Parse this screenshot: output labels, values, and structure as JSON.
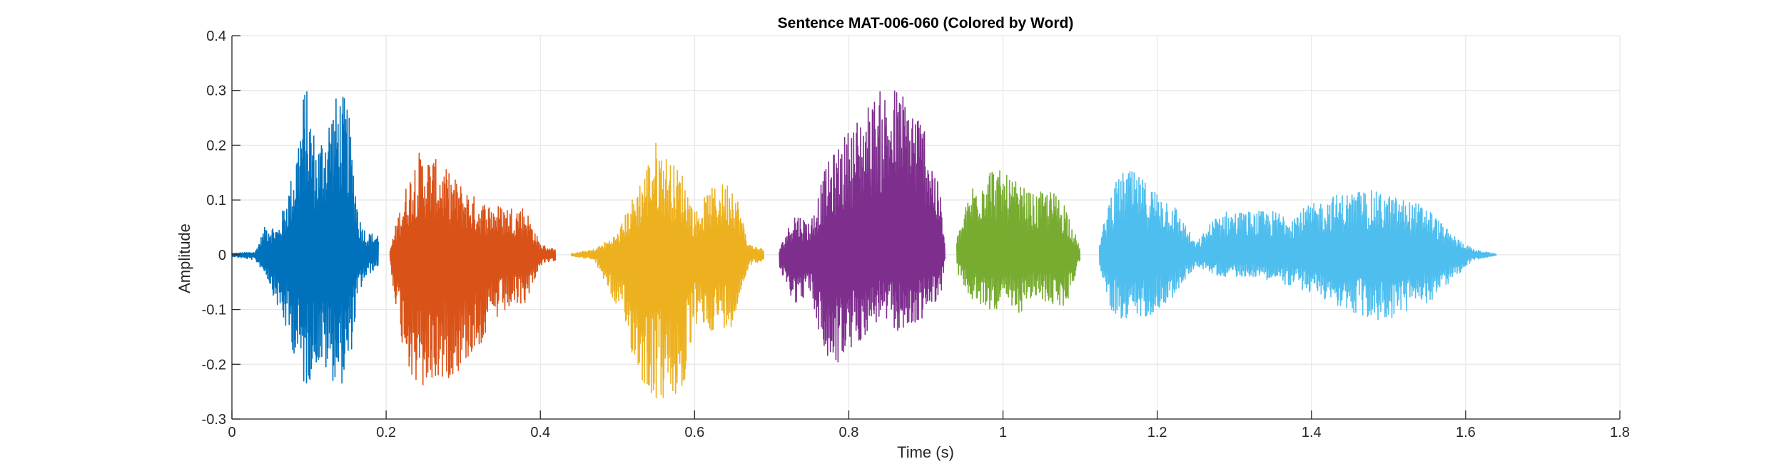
{
  "chart_data": {
    "type": "line",
    "title": "Sentence MAT-006-060 (Colored by Word)",
    "xlabel": "Time (s)",
    "ylabel": "Amplitude",
    "xlim": [
      0,
      1.8
    ],
    "ylim": [
      -0.3,
      0.4
    ],
    "x_ticks": [
      0,
      0.2,
      0.4,
      0.6,
      0.8,
      1,
      1.2,
      1.4,
      1.6,
      1.8
    ],
    "x_tick_labels": [
      "0",
      "0.2",
      "0.4",
      "0.6",
      "0.8",
      "1",
      "1.2",
      "1.4",
      "1.6",
      "1.8"
    ],
    "y_ticks": [
      -0.3,
      -0.2,
      -0.1,
      0,
      0.1,
      0.2,
      0.3,
      0.4
    ],
    "y_tick_labels": [
      "-0.3",
      "-0.2",
      "-0.1",
      "0",
      "0.1",
      "0.2",
      "0.3",
      "0.4"
    ],
    "grid": true,
    "series": [
      {
        "color": "#0072BD",
        "x_range": [
          0.0,
          0.19
        ],
        "envelope": [
          [
            0.0,
            0.003,
            -0.003
          ],
          [
            0.03,
            0.005,
            -0.01
          ],
          [
            0.045,
            0.06,
            -0.04
          ],
          [
            0.06,
            0.05,
            -0.1
          ],
          [
            0.08,
            0.16,
            -0.18
          ],
          [
            0.095,
            0.32,
            -0.25
          ],
          [
            0.11,
            0.2,
            -0.2
          ],
          [
            0.13,
            0.28,
            -0.23
          ],
          [
            0.14,
            0.3,
            -0.24
          ],
          [
            0.15,
            0.28,
            -0.23
          ],
          [
            0.165,
            0.07,
            -0.07
          ],
          [
            0.175,
            0.04,
            -0.04
          ],
          [
            0.19,
            0.04,
            -0.02
          ]
        ]
      },
      {
        "color": "#D95319",
        "x_range": [
          0.205,
          0.42
        ],
        "envelope": [
          [
            0.205,
            0.01,
            -0.02
          ],
          [
            0.22,
            0.1,
            -0.16
          ],
          [
            0.24,
            0.19,
            -0.26
          ],
          [
            0.26,
            0.18,
            -0.24
          ],
          [
            0.29,
            0.14,
            -0.22
          ],
          [
            0.32,
            0.1,
            -0.17
          ],
          [
            0.35,
            0.09,
            -0.11
          ],
          [
            0.38,
            0.09,
            -0.09
          ],
          [
            0.4,
            0.02,
            -0.02
          ],
          [
            0.42,
            0.01,
            -0.01
          ]
        ]
      },
      {
        "color": "#EDB120",
        "x_range": [
          0.44,
          0.69
        ],
        "envelope": [
          [
            0.44,
            0.002,
            -0.002
          ],
          [
            0.47,
            0.01,
            -0.01
          ],
          [
            0.5,
            0.04,
            -0.1
          ],
          [
            0.53,
            0.14,
            -0.23
          ],
          [
            0.55,
            0.21,
            -0.27
          ],
          [
            0.57,
            0.17,
            -0.27
          ],
          [
            0.585,
            0.15,
            -0.26
          ],
          [
            0.6,
            0.08,
            -0.13
          ],
          [
            0.62,
            0.12,
            -0.14
          ],
          [
            0.65,
            0.14,
            -0.13
          ],
          [
            0.67,
            0.02,
            -0.02
          ],
          [
            0.69,
            0.01,
            -0.01
          ]
        ]
      },
      {
        "color": "#7E2F8E",
        "x_range": [
          0.71,
          0.925
        ],
        "envelope": [
          [
            0.71,
            0.01,
            -0.03
          ],
          [
            0.73,
            0.08,
            -0.09
          ],
          [
            0.75,
            0.06,
            -0.07
          ],
          [
            0.77,
            0.16,
            -0.2
          ],
          [
            0.79,
            0.21,
            -0.2
          ],
          [
            0.82,
            0.27,
            -0.15
          ],
          [
            0.84,
            0.3,
            -0.12
          ],
          [
            0.86,
            0.31,
            -0.14
          ],
          [
            0.88,
            0.29,
            -0.14
          ],
          [
            0.9,
            0.24,
            -0.11
          ],
          [
            0.92,
            0.1,
            -0.07
          ],
          [
            0.925,
            0.01,
            -0.01
          ]
        ]
      },
      {
        "color": "#77AC30",
        "x_range": [
          0.94,
          1.1
        ],
        "envelope": [
          [
            0.94,
            0.03,
            -0.03
          ],
          [
            0.96,
            0.13,
            -0.09
          ],
          [
            0.98,
            0.17,
            -0.1
          ],
          [
            1.0,
            0.15,
            -0.1
          ],
          [
            1.02,
            0.13,
            -0.11
          ],
          [
            1.04,
            0.11,
            -0.08
          ],
          [
            1.06,
            0.12,
            -0.09
          ],
          [
            1.08,
            0.1,
            -0.1
          ],
          [
            1.1,
            0.01,
            -0.01
          ]
        ]
      },
      {
        "color": "#4DBEEE",
        "x_range": [
          1.125,
          1.64
        ],
        "envelope": [
          [
            1.125,
            0.02,
            -0.02
          ],
          [
            1.14,
            0.12,
            -0.1
          ],
          [
            1.16,
            0.16,
            -0.13
          ],
          [
            1.19,
            0.13,
            -0.11
          ],
          [
            1.22,
            0.1,
            -0.08
          ],
          [
            1.25,
            0.02,
            -0.02
          ],
          [
            1.28,
            0.08,
            -0.04
          ],
          [
            1.33,
            0.08,
            -0.04
          ],
          [
            1.38,
            0.08,
            -0.06
          ],
          [
            1.43,
            0.11,
            -0.09
          ],
          [
            1.47,
            0.12,
            -0.12
          ],
          [
            1.5,
            0.11,
            -0.12
          ],
          [
            1.55,
            0.09,
            -0.09
          ],
          [
            1.58,
            0.04,
            -0.05
          ],
          [
            1.61,
            0.01,
            -0.01
          ],
          [
            1.64,
            0.001,
            -0.001
          ]
        ]
      }
    ]
  }
}
